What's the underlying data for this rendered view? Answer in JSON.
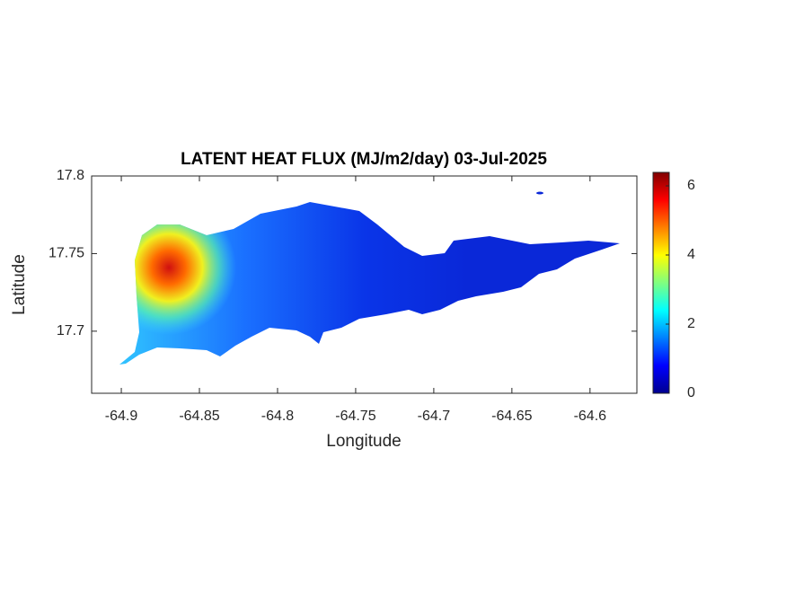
{
  "chart_data": {
    "type": "heatmap",
    "title": "LATENT HEAT FLUX (MJ/m2/day) 03-Jul-2025",
    "xlabel": "Longitude",
    "ylabel": "Latitude",
    "xlim": [
      -64.919,
      -64.57
    ],
    "xticks": [
      -64.9,
      -64.85,
      -64.8,
      -64.75,
      -64.7,
      -64.65,
      -64.6
    ],
    "ylim": [
      17.66,
      17.8
    ],
    "yticks": [
      17.7,
      17.75,
      17.8
    ],
    "clim": [
      0,
      6.39
    ],
    "cticks": [
      0,
      2,
      4,
      6
    ]
  }
}
